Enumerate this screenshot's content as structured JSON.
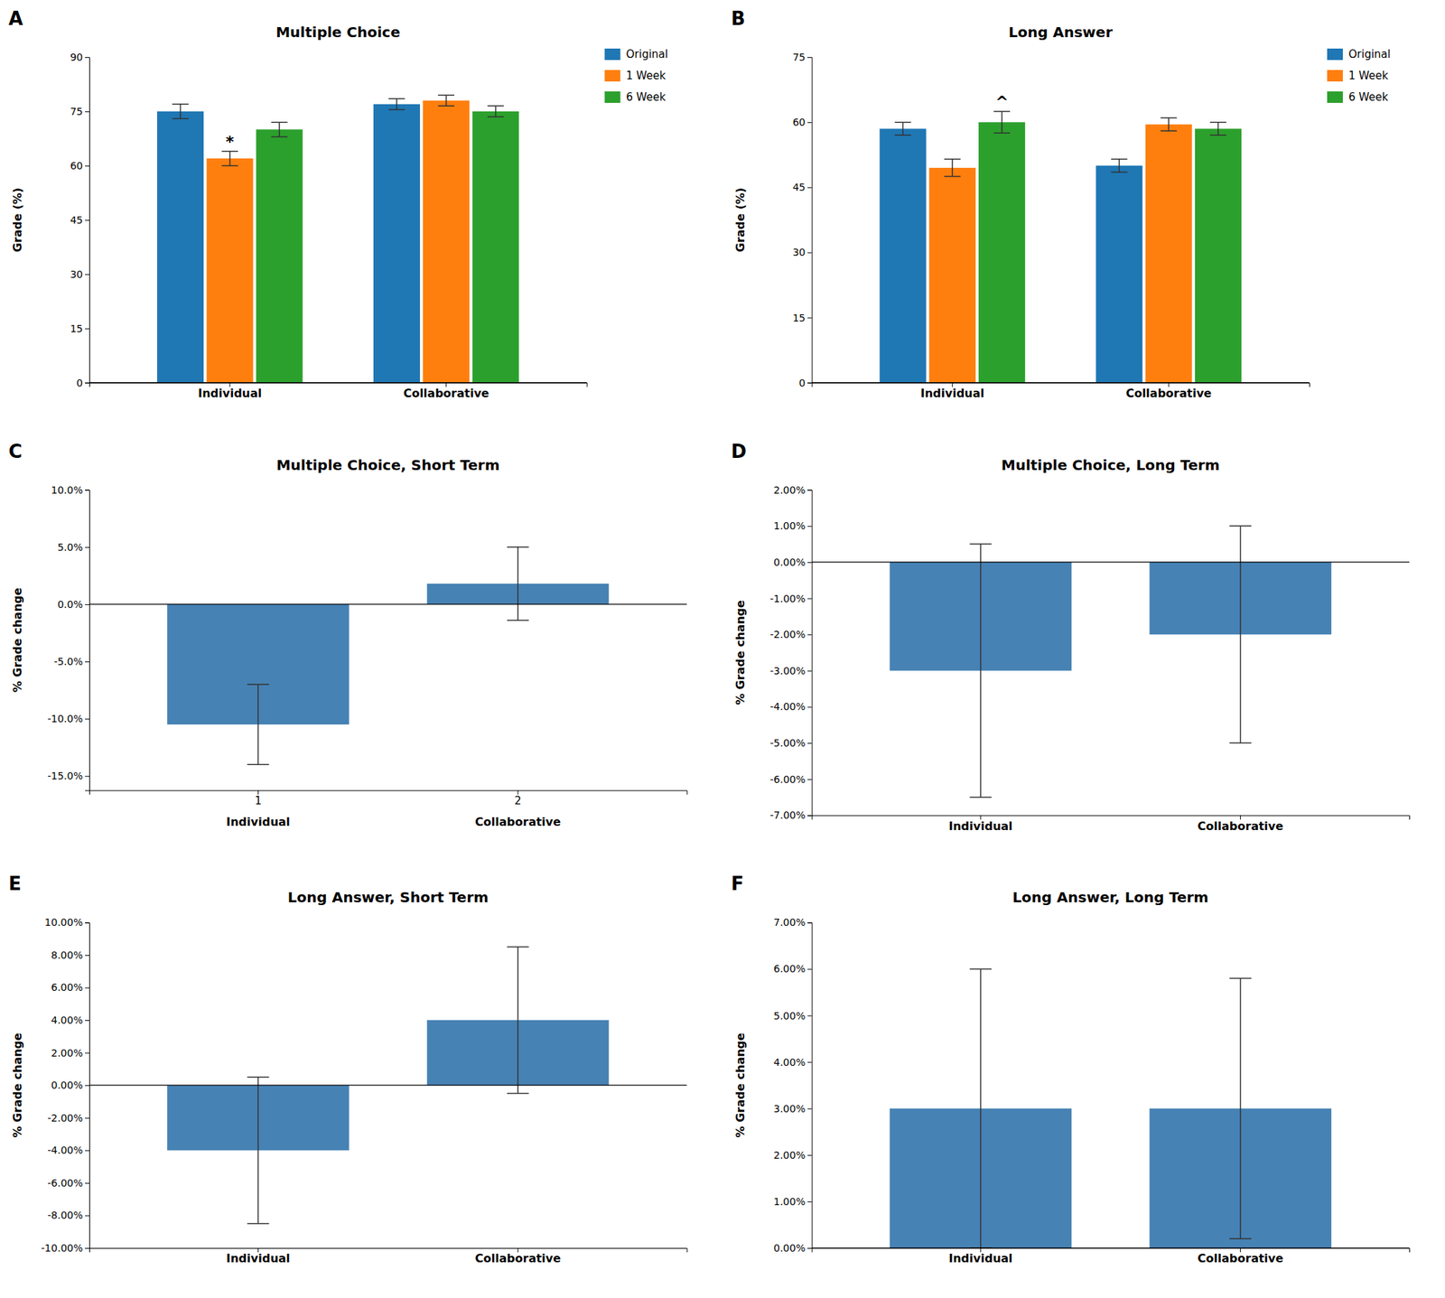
{
  "chart_data": [
    {
      "type": "bar",
      "panel_label": "A",
      "title": "Multiple Choice",
      "categories": [
        "Individual",
        "Collaborative"
      ],
      "series": [
        {
          "name": "Original",
          "values": [
            75,
            77
          ],
          "errors": [
            2,
            1.5
          ]
        },
        {
          "name": "1 Week",
          "values": [
            62,
            78
          ],
          "errors": [
            2,
            1.5
          ]
        },
        {
          "name": "6 Week",
          "values": [
            70,
            75
          ],
          "errors": [
            2,
            1.5
          ]
        }
      ],
      "ylabel": "Grade (%)",
      "ylim": [
        0,
        90
      ],
      "yticks": [
        0,
        15,
        30,
        45,
        60,
        75,
        90
      ],
      "annotations": [
        {
          "text": "*",
          "category": "Individual",
          "series": "1 Week"
        }
      ],
      "legend": "right",
      "grid": false
    },
    {
      "type": "bar",
      "panel_label": "B",
      "title": "Long Answer",
      "categories": [
        "Individual",
        "Collaborative"
      ],
      "series": [
        {
          "name": "Original",
          "values": [
            58.5,
            50.0
          ],
          "errors": [
            1.5,
            1.5
          ]
        },
        {
          "name": "1 Week",
          "values": [
            49.5,
            59.5
          ],
          "errors": [
            2.0,
            1.5
          ]
        },
        {
          "name": "6 Week",
          "values": [
            60,
            58.5
          ],
          "errors": [
            2.5,
            1.5
          ]
        }
      ],
      "ylabel": "Grade (%)",
      "ylim": [
        0,
        75
      ],
      "yticks": [
        0,
        15,
        30,
        45,
        60,
        75
      ],
      "annotations": [
        {
          "text": "^",
          "category": "Individual",
          "series": "6 Week"
        }
      ],
      "legend": "right",
      "grid": false
    },
    {
      "type": "bar",
      "panel_label": "C",
      "title": "Multiple Choice, Short Term",
      "categories": [
        "Individual",
        "Collaborative"
      ],
      "numbers": [
        "1",
        "2"
      ],
      "values": [
        -10.5,
        1.8
      ],
      "errors": [
        3.5,
        3.2
      ],
      "ylabel": "% Grade change",
      "ylim": [
        -16.25,
        10.0
      ],
      "yticks": [
        {
          "value": -15.0,
          "label": "-15.0%"
        },
        {
          "value": -10.0,
          "label": "-10.0%"
        },
        {
          "value": -5.0,
          "label": "-5.0%"
        },
        {
          "value": 0.0,
          "label": "0.0%"
        },
        {
          "value": 5.0,
          "label": "5.0%"
        },
        {
          "value": 10.0,
          "label": "10.0%"
        }
      ],
      "grid": false
    },
    {
      "type": "bar",
      "panel_label": "D",
      "title": "Multiple Choice, Long Term",
      "categories": [
        "Individual",
        "Collaborative"
      ],
      "values": [
        -3.0,
        -2.0
      ],
      "errors": [
        3.5,
        3.0
      ],
      "ylabel": "% Grade change",
      "ylim": [
        -7.0,
        2.0
      ],
      "yticks": [
        {
          "value": -7.0,
          "label": "-7.00%"
        },
        {
          "value": -6.0,
          "label": "-6.00%"
        },
        {
          "value": -5.0,
          "label": "-5.00%"
        },
        {
          "value": -4.0,
          "label": "-4.00%"
        },
        {
          "value": -3.0,
          "label": "-3.00%"
        },
        {
          "value": -2.0,
          "label": "-2.00%"
        },
        {
          "value": -1.0,
          "label": "-1.00%"
        },
        {
          "value": 0.0,
          "label": "0.00%"
        },
        {
          "value": 1.0,
          "label": "1.00%"
        },
        {
          "value": 2.0,
          "label": "2.00%"
        }
      ],
      "grid": false
    },
    {
      "type": "bar",
      "panel_label": "E",
      "title": "Long Answer, Short Term",
      "categories": [
        "Individual",
        "Collaborative"
      ],
      "values": [
        -4.0,
        4.0
      ],
      "errors": [
        4.5,
        4.5
      ],
      "ylabel": "% Grade change",
      "ylim": [
        -10.0,
        10.0
      ],
      "yticks": [
        {
          "value": -10.0,
          "label": "-10.00%"
        },
        {
          "value": -8.0,
          "label": "-8.00%"
        },
        {
          "value": -6.0,
          "label": "-6.00%"
        },
        {
          "value": -4.0,
          "label": "-4.00%"
        },
        {
          "value": -2.0,
          "label": "-2.00%"
        },
        {
          "value": 0.0,
          "label": "0.00%"
        },
        {
          "value": 2.0,
          "label": "2.00%"
        },
        {
          "value": 4.0,
          "label": "4.00%"
        },
        {
          "value": 6.0,
          "label": "6.00%"
        },
        {
          "value": 8.0,
          "label": "8.00%"
        },
        {
          "value": 10.0,
          "label": "10.00%"
        }
      ],
      "grid": false
    },
    {
      "type": "bar",
      "panel_label": "F",
      "title": "Long Answer, Long Term",
      "categories": [
        "Individual",
        "Collaborative"
      ],
      "values": [
        3.0,
        3.0
      ],
      "errors": [
        3.0,
        2.8
      ],
      "ylabel": "% Grade change",
      "ylim": [
        0.0,
        7.0
      ],
      "yticks": [
        {
          "value": 0.0,
          "label": "0.00%"
        },
        {
          "value": 1.0,
          "label": "1.00%"
        },
        {
          "value": 2.0,
          "label": "2.00%"
        },
        {
          "value": 3.0,
          "label": "3.00%"
        },
        {
          "value": 4.0,
          "label": "4.00%"
        },
        {
          "value": 5.0,
          "label": "5.00%"
        },
        {
          "value": 6.0,
          "label": "6.00%"
        },
        {
          "value": 7.0,
          "label": "7.00%"
        }
      ],
      "grid": false
    }
  ]
}
